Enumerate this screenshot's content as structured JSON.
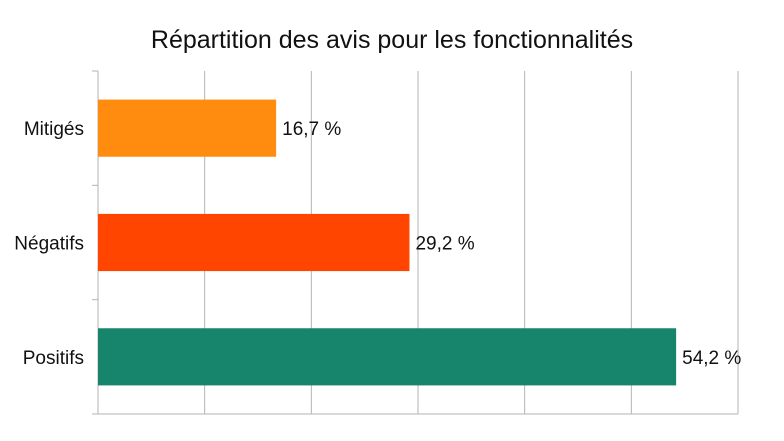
{
  "chart_data": {
    "type": "bar",
    "orientation": "horizontal",
    "title": "Répartition des avis pour les fonctionnalités",
    "categories": [
      "Mitigés",
      "Négatifs",
      "Positifs"
    ],
    "values": [
      16.7,
      29.2,
      54.2
    ],
    "value_labels": [
      "16,7 %",
      "29,2 %",
      "54,2 %"
    ],
    "colors": [
      "#ff8c0f",
      "#ff4500",
      "#17856b"
    ],
    "xlim": [
      0,
      60
    ],
    "grid": true,
    "legend": "none"
  }
}
